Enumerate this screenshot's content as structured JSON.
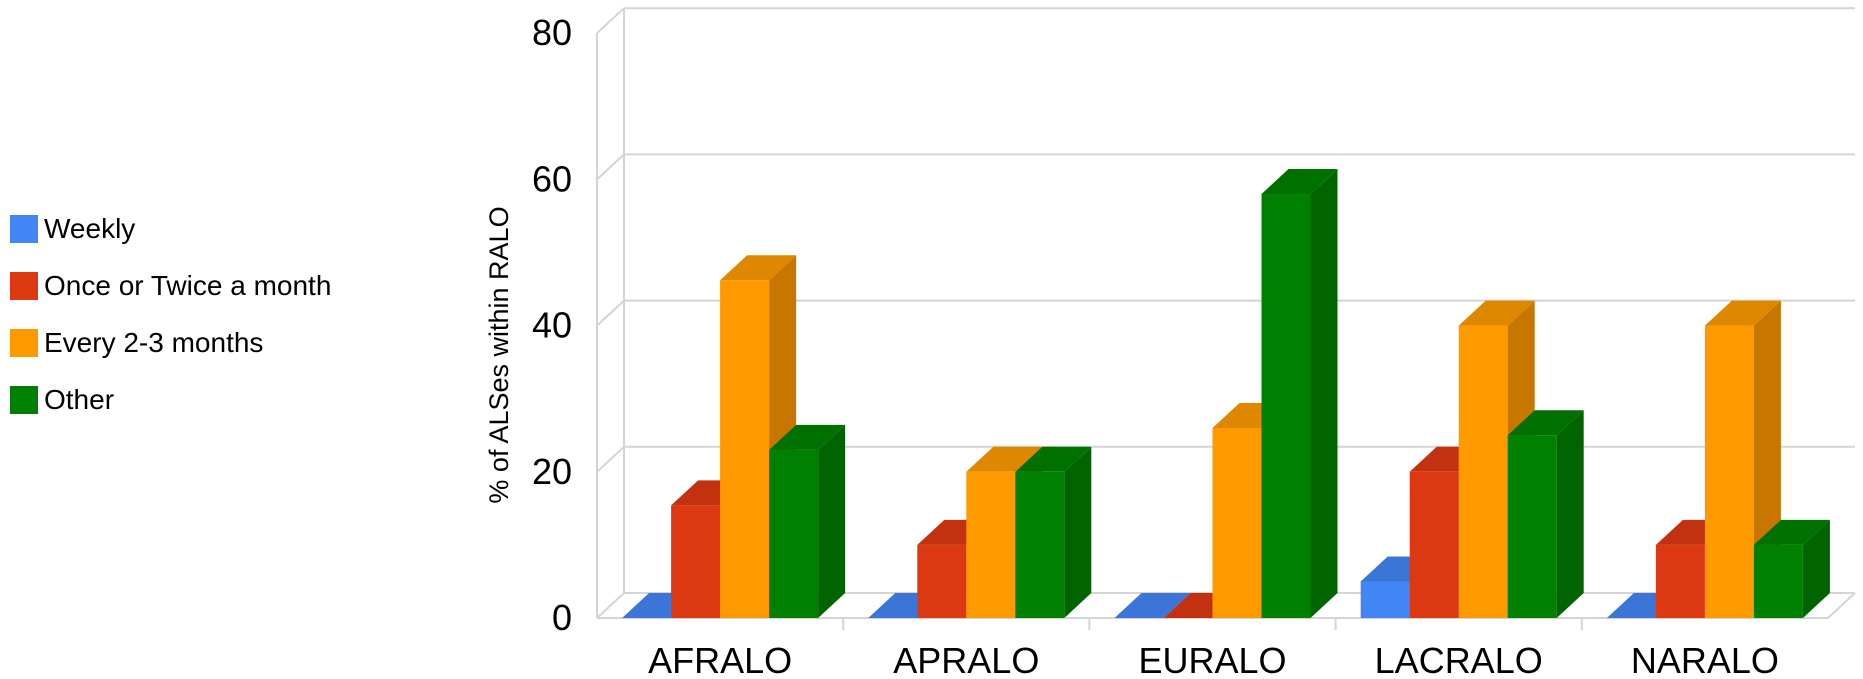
{
  "chart_data": {
    "type": "bar",
    "title": "",
    "xlabel": "",
    "ylabel": "% of ALSes within RALO",
    "categories": [
      "AFRALO",
      "APRALO",
      "EURALO",
      "LACRALO",
      "NARALO"
    ],
    "ylim": [
      0,
      80
    ],
    "yticks": [
      "0",
      "20",
      "40",
      "60",
      "80"
    ],
    "grid": true,
    "legend_position": "left",
    "series": [
      {
        "name": "Weekly",
        "color": "#4285f4",
        "values": [
          0,
          0,
          0,
          5,
          0
        ]
      },
      {
        "name": "Once or Twice a month",
        "color": "#dc3912",
        "values": [
          15.4,
          10,
          0,
          20,
          10
        ]
      },
      {
        "name": "Every 2-3 months",
        "color": "#ff9900",
        "values": [
          46.2,
          20,
          26,
          40,
          40
        ]
      },
      {
        "name": "Other",
        "color": "#008000",
        "values": [
          23,
          20,
          58,
          25,
          10
        ]
      }
    ]
  }
}
